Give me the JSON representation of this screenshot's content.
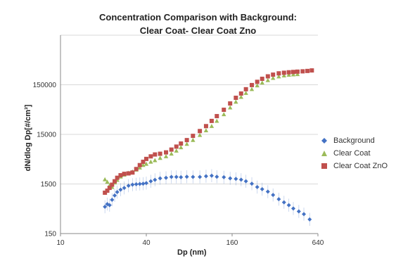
{
  "chart_data": {
    "type": "scatter",
    "title": "Concentration Comparison with Background:",
    "subtitle": "Clear Coat- Clear Coat Zno",
    "xlabel": "Dp (nm)",
    "ylabel": "dN/dlog Dp[#/cm³]",
    "x_scale": "log2",
    "y_scale": "log10",
    "xlim": [
      10,
      640
    ],
    "ylim": [
      150,
      1500000
    ],
    "x_ticks": [
      "10",
      "40",
      "160",
      "640"
    ],
    "y_ticks": [
      "150",
      "1500",
      "15000",
      "150000"
    ],
    "legend_position": "right",
    "grid": {
      "horizontal": true,
      "vertical": false
    },
    "series": [
      {
        "name": "Background",
        "color": "#4472C4",
        "marker": "diamond",
        "error_bars": true,
        "points": [
          [
            20.5,
            520
          ],
          [
            21.3,
            590
          ],
          [
            22.1,
            560
          ],
          [
            23,
            720
          ],
          [
            24,
            880
          ],
          [
            25,
            1030
          ],
          [
            26.4,
            1150
          ],
          [
            28,
            1250
          ],
          [
            30,
            1380
          ],
          [
            32,
            1450
          ],
          [
            34,
            1480
          ],
          [
            36,
            1500
          ],
          [
            38,
            1520
          ],
          [
            40,
            1560
          ],
          [
            43,
            1700
          ],
          [
            46,
            1820
          ],
          [
            50,
            1950
          ],
          [
            55,
            2000
          ],
          [
            60,
            2080
          ],
          [
            65,
            2080
          ],
          [
            70,
            2050
          ],
          [
            77,
            2100
          ],
          [
            85,
            2080
          ],
          [
            95,
            2080
          ],
          [
            105,
            2150
          ],
          [
            115,
            2200
          ],
          [
            125,
            2100
          ],
          [
            140,
            2050
          ],
          [
            155,
            1950
          ],
          [
            170,
            1900
          ],
          [
            185,
            1830
          ],
          [
            200,
            1700
          ],
          [
            220,
            1520
          ],
          [
            240,
            1300
          ],
          [
            260,
            1180
          ],
          [
            285,
            1050
          ],
          [
            310,
            900
          ],
          [
            340,
            740
          ],
          [
            370,
            640
          ],
          [
            400,
            560
          ],
          [
            430,
            480
          ],
          [
            470,
            420
          ],
          [
            510,
            370
          ],
          [
            560,
            290
          ]
        ]
      },
      {
        "name": "Clear Coat",
        "color": "#9BBB59",
        "marker": "triangle",
        "error_bars": true,
        "points": [
          [
            20.5,
            1850
          ],
          [
            21.3,
            1650
          ],
          [
            22.1,
            1400
          ],
          [
            23,
            1300
          ],
          [
            24,
            1600
          ],
          [
            25,
            1800
          ],
          [
            26.4,
            2100
          ],
          [
            28,
            2300
          ],
          [
            30,
            2500
          ],
          [
            32,
            2650
          ],
          [
            34,
            2900
          ],
          [
            36,
            3200
          ],
          [
            38,
            3600
          ],
          [
            40,
            3800
          ],
          [
            43,
            4200
          ],
          [
            46,
            4500
          ],
          [
            50,
            5000
          ],
          [
            55,
            5400
          ],
          [
            60,
            6100
          ],
          [
            65,
            7000
          ],
          [
            70,
            8200
          ],
          [
            77,
            9600
          ],
          [
            85,
            11500
          ],
          [
            95,
            14500
          ],
          [
            105,
            18000
          ],
          [
            115,
            22000
          ],
          [
            125,
            28000
          ],
          [
            140,
            38000
          ],
          [
            155,
            52000
          ],
          [
            170,
            68000
          ],
          [
            185,
            85000
          ],
          [
            200,
            102000
          ],
          [
            220,
            122000
          ],
          [
            240,
            145000
          ],
          [
            260,
            165000
          ],
          [
            285,
            185000
          ],
          [
            310,
            205000
          ],
          [
            340,
            220000
          ],
          [
            370,
            230000
          ],
          [
            400,
            238000
          ],
          [
            430,
            242000
          ],
          [
            460,
            245000
          ]
        ]
      },
      {
        "name": "Clear Coat ZnO",
        "color": "#C0504D",
        "marker": "square",
        "error_bars": true,
        "points": [
          [
            20.5,
            1000
          ],
          [
            21.3,
            1100
          ],
          [
            22.1,
            1250
          ],
          [
            23,
            1450
          ],
          [
            24,
            1700
          ],
          [
            25,
            2000
          ],
          [
            26.4,
            2250
          ],
          [
            28,
            2400
          ],
          [
            30,
            2450
          ],
          [
            32,
            2550
          ],
          [
            34,
            3000
          ],
          [
            36,
            3600
          ],
          [
            38,
            4200
          ],
          [
            40,
            4800
          ],
          [
            43,
            5400
          ],
          [
            46,
            5900
          ],
          [
            50,
            6100
          ],
          [
            55,
            6500
          ],
          [
            60,
            7400
          ],
          [
            65,
            8500
          ],
          [
            70,
            9800
          ],
          [
            77,
            11500
          ],
          [
            85,
            14000
          ],
          [
            95,
            17500
          ],
          [
            105,
            22000
          ],
          [
            115,
            28000
          ],
          [
            125,
            35000
          ],
          [
            140,
            47000
          ],
          [
            155,
            63000
          ],
          [
            170,
            82000
          ],
          [
            185,
            100000
          ],
          [
            200,
            122000
          ],
          [
            220,
            148000
          ],
          [
            240,
            172000
          ],
          [
            260,
            198000
          ],
          [
            285,
            222000
          ],
          [
            310,
            240000
          ],
          [
            340,
            255000
          ],
          [
            370,
            262000
          ],
          [
            400,
            268000
          ],
          [
            430,
            272000
          ],
          [
            460,
            276000
          ],
          [
            500,
            280000
          ],
          [
            540,
            285000
          ],
          [
            580,
            292000
          ]
        ]
      }
    ]
  }
}
